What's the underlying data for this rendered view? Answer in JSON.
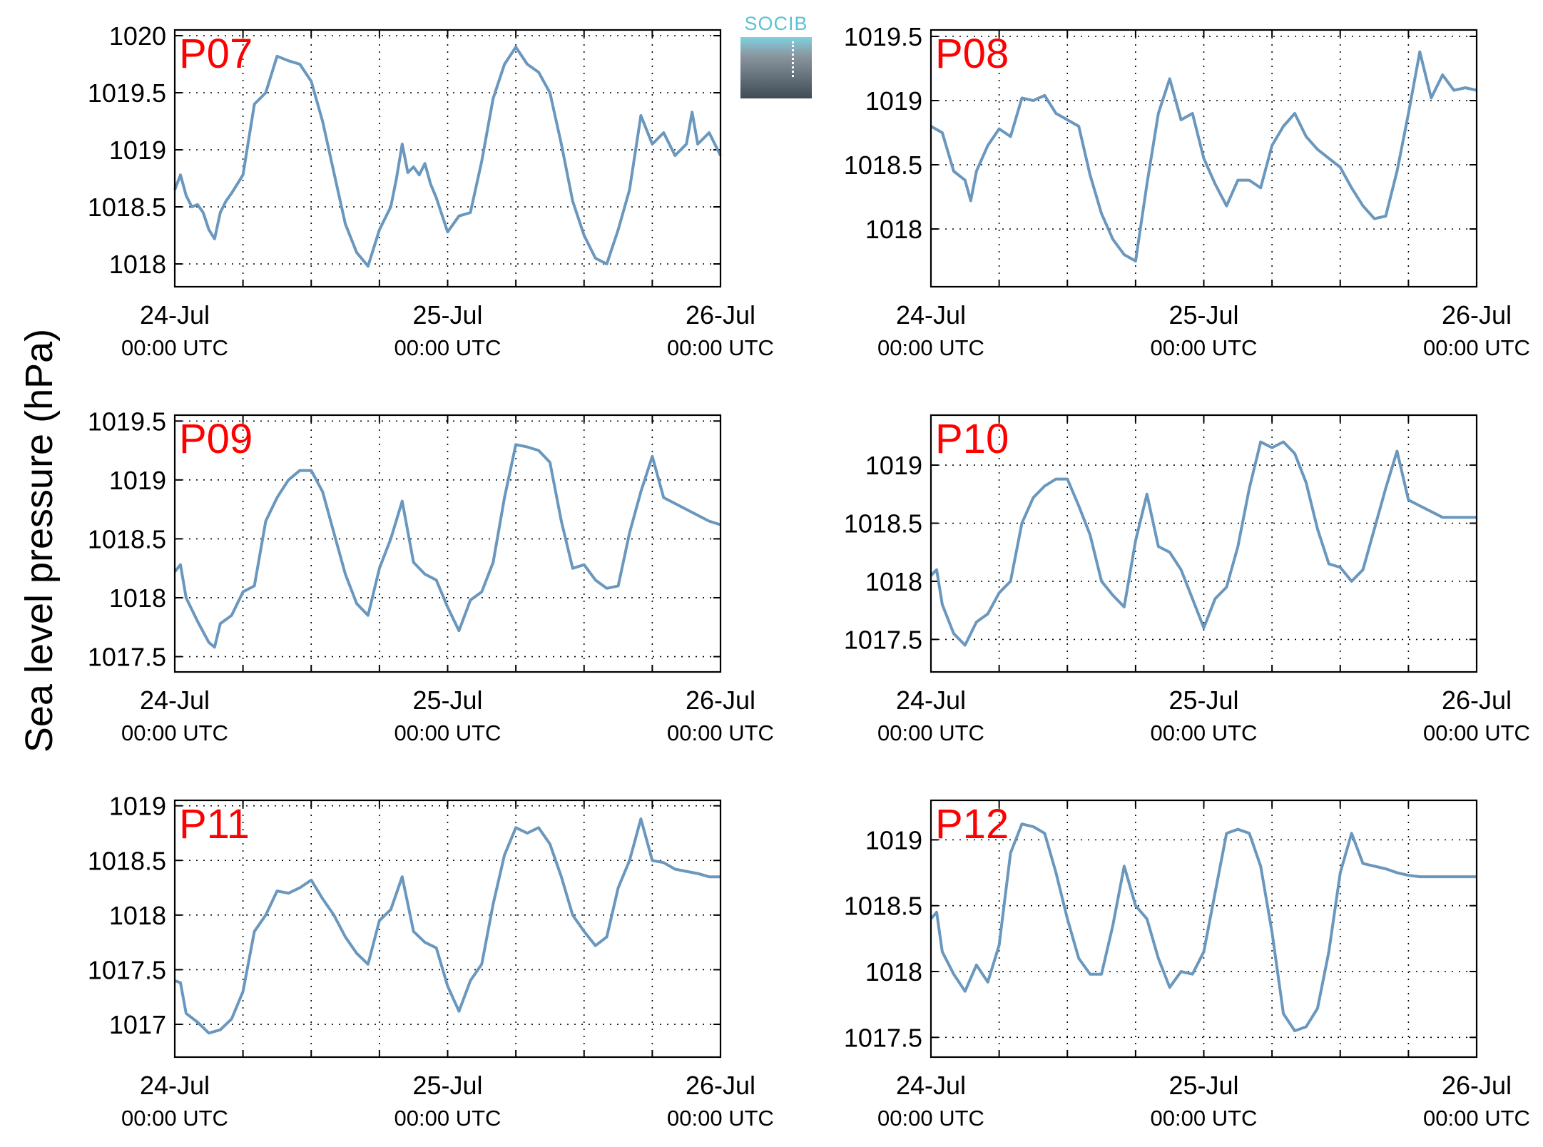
{
  "figure": {
    "ylabel": "Sea level pressure (hPa)",
    "logo_text": "SOCIB",
    "line_color": "#6a97bd",
    "panel_label_color": "#ff0000"
  },
  "chart_data": [
    {
      "type": "line",
      "label": "P07",
      "xlim": [
        0,
        48
      ],
      "ylim": [
        1017.8,
        1020.05
      ],
      "yticks": [
        1018,
        1018.5,
        1019,
        1019.5,
        1020
      ],
      "ytick_labels": [
        "1018",
        "1018.5",
        "1019",
        "1019.5",
        "1020"
      ],
      "xtick_labels": [
        [
          "24-Jul",
          "00:00 UTC"
        ],
        [
          "25-Jul",
          "00:00 UTC"
        ],
        [
          "26-Jul",
          "00:00 UTC"
        ]
      ],
      "grid": true,
      "x": [
        0,
        0.5,
        1,
        1.5,
        2,
        2.5,
        3,
        3.5,
        4,
        4.5,
        5,
        6,
        7,
        8,
        9,
        10,
        11,
        12,
        13,
        14,
        15,
        16,
        17,
        18,
        19,
        19.5,
        20,
        20.5,
        21,
        21.5,
        22,
        22.5,
        23,
        24,
        25,
        26,
        27,
        28,
        29,
        30,
        31,
        32,
        33,
        34,
        35,
        36,
        37,
        38,
        39,
        40,
        41,
        42,
        43,
        44,
        44.5,
        45,
        45.5,
        46,
        46.5,
        47,
        48
      ],
      "y": [
        1018.65,
        1018.78,
        1018.6,
        1018.5,
        1018.52,
        1018.45,
        1018.3,
        1018.22,
        1018.45,
        1018.55,
        1018.62,
        1018.78,
        1019.4,
        1019.5,
        1019.82,
        1019.78,
        1019.75,
        1019.6,
        1019.25,
        1018.8,
        1018.35,
        1018.1,
        1017.98,
        1018.3,
        1018.5,
        1018.75,
        1019.05,
        1018.8,
        1018.85,
        1018.78,
        1018.88,
        1018.7,
        1018.58,
        1018.28,
        1018.42,
        1018.45,
        1018.9,
        1019.45,
        1019.75,
        1019.9,
        1019.75,
        1019.68,
        1019.5,
        1019.05,
        1018.55,
        1018.25,
        1018.05,
        1018.0,
        1018.3,
        1018.65,
        1019.3,
        1019.05,
        1019.15,
        1018.95,
        1019.0,
        1019.05,
        1019.33,
        1019.05,
        1019.1,
        1019.15,
        1018.95
      ]
    },
    {
      "type": "line",
      "label": "P08",
      "xlim": [
        0,
        48
      ],
      "ylim": [
        1017.55,
        1019.55
      ],
      "yticks": [
        1018,
        1018.5,
        1019,
        1019.5
      ],
      "ytick_labels": [
        "1018",
        "1018.5",
        "1019",
        "1019.5"
      ],
      "xtick_labels": [
        [
          "24-Jul",
          "00:00 UTC"
        ],
        [
          "25-Jul",
          "00:00 UTC"
        ],
        [
          "26-Jul",
          "00:00 UTC"
        ]
      ],
      "grid": true,
      "x": [
        0,
        1,
        2,
        3,
        3.5,
        4,
        5,
        6,
        7,
        8,
        9,
        10,
        11,
        12,
        13,
        14,
        15,
        16,
        17,
        18,
        19,
        20,
        21,
        22,
        23,
        24,
        25,
        26,
        27,
        28,
        29,
        30,
        31,
        32,
        33,
        34,
        35,
        36,
        37,
        38,
        39,
        40,
        41,
        42,
        43,
        44,
        45,
        46,
        47,
        48
      ],
      "y": [
        1018.8,
        1018.75,
        1018.45,
        1018.38,
        1018.22,
        1018.45,
        1018.65,
        1018.78,
        1018.72,
        1019.02,
        1019.0,
        1019.04,
        1018.9,
        1018.85,
        1018.8,
        1018.42,
        1018.12,
        1017.92,
        1017.8,
        1017.75,
        1018.35,
        1018.9,
        1019.17,
        1018.85,
        1018.9,
        1018.55,
        1018.35,
        1018.18,
        1018.38,
        1018.38,
        1018.32,
        1018.65,
        1018.8,
        1018.9,
        1018.72,
        1018.62,
        1018.55,
        1018.48,
        1018.32,
        1018.18,
        1018.08,
        1018.1,
        1018.45,
        1018.9,
        1019.38,
        1019.02,
        1019.2,
        1019.08,
        1019.1,
        1019.08
      ]
    },
    {
      "type": "line",
      "label": "P09",
      "xlim": [
        0,
        48
      ],
      "ylim": [
        1017.37,
        1019.55
      ],
      "yticks": [
        1017.5,
        1018,
        1018.5,
        1019,
        1019.5
      ],
      "ytick_labels": [
        "1017.5",
        "1018",
        "1018.5",
        "1019",
        "1019.5"
      ],
      "xtick_labels": [
        [
          "24-Jul",
          "00:00 UTC"
        ],
        [
          "25-Jul",
          "00:00 UTC"
        ],
        [
          "26-Jul",
          "00:00 UTC"
        ]
      ],
      "grid": true,
      "x": [
        0,
        0.5,
        1,
        2,
        3,
        3.5,
        4,
        5,
        6,
        7,
        8,
        9,
        10,
        11,
        12,
        13,
        14,
        15,
        16,
        17,
        18,
        19,
        20,
        21,
        22,
        23,
        24,
        25,
        26,
        27,
        28,
        29,
        30,
        31,
        32,
        33,
        34,
        35,
        36,
        37,
        38,
        39,
        40,
        41,
        42,
        43,
        44,
        45,
        46,
        47,
        48
      ],
      "y": [
        1018.22,
        1018.28,
        1018.0,
        1017.8,
        1017.62,
        1017.58,
        1017.78,
        1017.85,
        1018.05,
        1018.1,
        1018.65,
        1018.85,
        1019.0,
        1019.08,
        1019.08,
        1018.9,
        1018.55,
        1018.2,
        1017.95,
        1017.85,
        1018.25,
        1018.5,
        1018.82,
        1018.3,
        1018.2,
        1018.15,
        1017.92,
        1017.72,
        1017.98,
        1018.05,
        1018.3,
        1018.85,
        1019.3,
        1019.28,
        1019.25,
        1019.15,
        1018.65,
        1018.25,
        1018.28,
        1018.15,
        1018.08,
        1018.1,
        1018.55,
        1018.9,
        1019.2,
        1018.85,
        1018.8,
        1018.75,
        1018.7,
        1018.65,
        1018.62
      ]
    },
    {
      "type": "line",
      "label": "P10",
      "xlim": [
        0,
        48
      ],
      "ylim": [
        1017.22,
        1019.43
      ],
      "yticks": [
        1017.5,
        1018,
        1018.5,
        1019
      ],
      "ytick_labels": [
        "1017.5",
        "1018",
        "1018.5",
        "1019"
      ],
      "xtick_labels": [
        [
          "24-Jul",
          "00:00 UTC"
        ],
        [
          "25-Jul",
          "00:00 UTC"
        ],
        [
          "26-Jul",
          "00:00 UTC"
        ]
      ],
      "grid": true,
      "x": [
        0,
        0.5,
        1,
        2,
        3,
        4,
        5,
        6,
        7,
        8,
        9,
        10,
        11,
        12,
        13,
        14,
        15,
        16,
        17,
        18,
        19,
        20,
        21,
        22,
        23,
        24,
        25,
        26,
        27,
        28,
        29,
        30,
        31,
        32,
        33,
        34,
        35,
        36,
        37,
        38,
        39,
        40,
        41,
        42,
        43,
        44,
        45,
        46,
        47,
        48
      ],
      "y": [
        1018.05,
        1018.1,
        1017.8,
        1017.55,
        1017.45,
        1017.65,
        1017.72,
        1017.9,
        1018.0,
        1018.5,
        1018.72,
        1018.82,
        1018.88,
        1018.88,
        1018.65,
        1018.4,
        1018.0,
        1017.88,
        1017.78,
        1018.35,
        1018.75,
        1018.3,
        1018.25,
        1018.1,
        1017.85,
        1017.6,
        1017.85,
        1017.95,
        1018.3,
        1018.8,
        1019.2,
        1019.15,
        1019.2,
        1019.1,
        1018.85,
        1018.45,
        1018.15,
        1018.12,
        1018.0,
        1018.1,
        1018.45,
        1018.8,
        1019.12,
        1018.7,
        1018.65,
        1018.6,
        1018.55,
        1018.55,
        1018.55,
        1018.55
      ]
    },
    {
      "type": "line",
      "label": "P11",
      "xlim": [
        0,
        48
      ],
      "ylim": [
        1016.7,
        1019.05
      ],
      "yticks": [
        1017,
        1017.5,
        1018,
        1018.5,
        1019
      ],
      "ytick_labels": [
        "1017",
        "1017.5",
        "1018",
        "1018.5",
        "1019"
      ],
      "xtick_labels": [
        [
          "24-Jul",
          "00:00 UTC"
        ],
        [
          "25-Jul",
          "00:00 UTC"
        ],
        [
          "26-Jul",
          "00:00 UTC"
        ]
      ],
      "grid": true,
      "x": [
        0,
        0.5,
        1,
        2,
        3,
        4,
        5,
        6,
        7,
        8,
        9,
        10,
        11,
        12,
        13,
        14,
        15,
        16,
        17,
        18,
        19,
        20,
        21,
        22,
        23,
        24,
        25,
        26,
        27,
        28,
        29,
        30,
        31,
        32,
        33,
        34,
        35,
        36,
        37,
        38,
        39,
        40,
        41,
        42,
        43,
        44,
        45,
        46,
        47,
        48
      ],
      "y": [
        1017.4,
        1017.38,
        1017.1,
        1017.02,
        1016.92,
        1016.95,
        1017.05,
        1017.3,
        1017.85,
        1018.0,
        1018.22,
        1018.2,
        1018.25,
        1018.32,
        1018.15,
        1018.0,
        1017.8,
        1017.65,
        1017.55,
        1017.95,
        1018.05,
        1018.35,
        1017.85,
        1017.75,
        1017.7,
        1017.35,
        1017.12,
        1017.4,
        1017.55,
        1018.1,
        1018.55,
        1018.8,
        1018.75,
        1018.8,
        1018.65,
        1018.35,
        1018.0,
        1017.85,
        1017.72,
        1017.8,
        1018.25,
        1018.5,
        1018.88,
        1018.5,
        1018.48,
        1018.42,
        1018.4,
        1018.38,
        1018.35,
        1018.35
      ]
    },
    {
      "type": "line",
      "label": "P12",
      "xlim": [
        0,
        48
      ],
      "ylim": [
        1017.35,
        1019.3
      ],
      "yticks": [
        1017.5,
        1018,
        1018.5,
        1019
      ],
      "ytick_labels": [
        "1017.5",
        "1018",
        "1018.5",
        "1019"
      ],
      "xtick_labels": [
        [
          "24-Jul",
          "00:00 UTC"
        ],
        [
          "25-Jul",
          "00:00 UTC"
        ],
        [
          "26-Jul",
          "00:00 UTC"
        ]
      ],
      "grid": true,
      "x": [
        0,
        0.5,
        1,
        2,
        3,
        4,
        5,
        6,
        7,
        8,
        9,
        10,
        11,
        12,
        13,
        14,
        15,
        16,
        17,
        18,
        19,
        20,
        21,
        22,
        23,
        24,
        25,
        26,
        27,
        28,
        29,
        30,
        31,
        32,
        33,
        34,
        35,
        36,
        37,
        38,
        39,
        40,
        41,
        42,
        43,
        44,
        45,
        46,
        47,
        48
      ],
      "y": [
        1018.4,
        1018.45,
        1018.15,
        1017.98,
        1017.85,
        1018.05,
        1017.92,
        1018.2,
        1018.9,
        1019.12,
        1019.1,
        1019.05,
        1018.75,
        1018.4,
        1018.1,
        1017.98,
        1017.98,
        1018.35,
        1018.8,
        1018.5,
        1018.4,
        1018.1,
        1017.88,
        1018.0,
        1017.98,
        1018.15,
        1018.6,
        1019.05,
        1019.08,
        1019.05,
        1018.8,
        1018.3,
        1017.68,
        1017.55,
        1017.58,
        1017.72,
        1018.15,
        1018.75,
        1019.05,
        1018.82,
        1018.8,
        1018.78,
        1018.75,
        1018.73,
        1018.72,
        1018.72,
        1018.72,
        1018.72,
        1018.72,
        1018.72
      ]
    }
  ]
}
